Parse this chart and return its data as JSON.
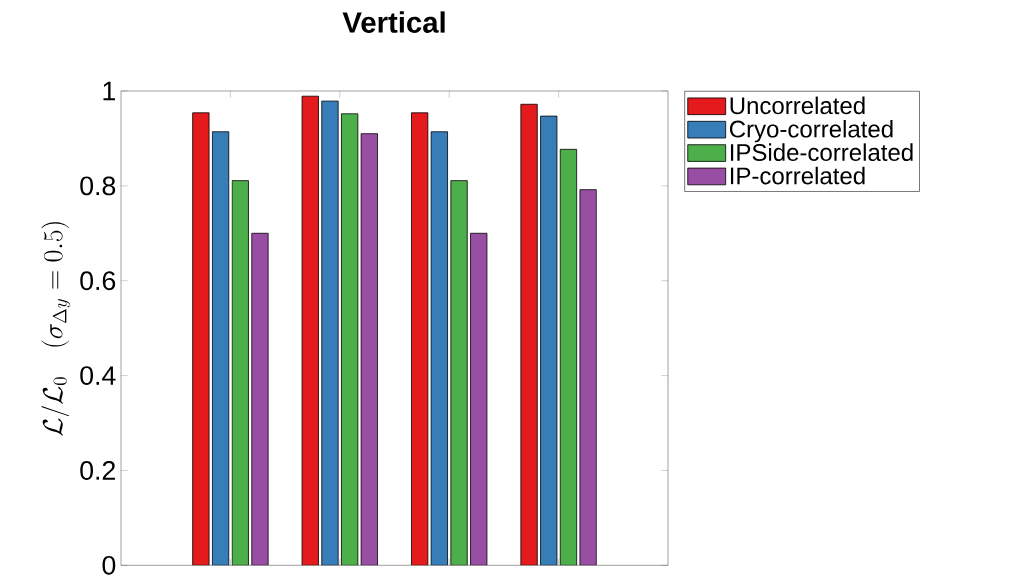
{
  "chart_data": {
    "type": "bar",
    "title": "Vertical",
    "ylabel": "\\mathcal{L}/\\mathcal{L}_0 \\quad (\\sigma_{\\Delta y} = 0.5)",
    "categories": [
      null,
      null,
      null,
      null
    ],
    "series": [
      {
        "name": "Uncorrelated",
        "color": "#e41a1c",
        "values": [
          0.954,
          0.989,
          0.954,
          0.972
        ]
      },
      {
        "name": "Cryo-correlated",
        "color": "#377eb8",
        "values": [
          0.914,
          0.979,
          0.914,
          0.947
        ]
      },
      {
        "name": "IPSide-correlated",
        "color": "#4daf4a",
        "values": [
          0.811,
          0.952,
          0.811,
          0.877
        ]
      },
      {
        "name": "IP-correlated",
        "color": "#984ea3",
        "values": [
          0.7,
          0.91,
          0.7,
          0.792
        ]
      }
    ],
    "ylim": [
      0,
      1
    ],
    "yticks": [
      0,
      0.2,
      0.4,
      0.6,
      0.8,
      1
    ],
    "legend": "top right",
    "tick_labels": "y"
  }
}
